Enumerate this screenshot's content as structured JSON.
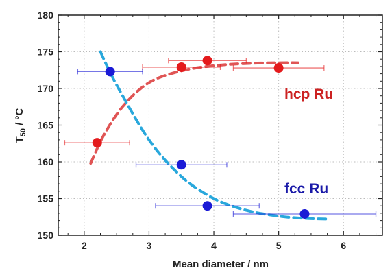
{
  "chart_data": {
    "type": "scatter",
    "xlabel": "Mean diameter / nm",
    "ylabel_main": "T",
    "ylabel_sub": "50",
    "ylabel_rest": " / °C",
    "xlim": [
      1.6,
      6.6
    ],
    "ylim": [
      150,
      180
    ],
    "xticks": [
      2,
      3,
      4,
      5,
      6
    ],
    "yticks": [
      150,
      155,
      160,
      165,
      170,
      175,
      180
    ],
    "xtick_labels": [
      "2",
      "3",
      "4",
      "5",
      "6"
    ],
    "ytick_labels": [
      "150",
      "155",
      "160",
      "165",
      "170",
      "175",
      "180"
    ],
    "grid": true,
    "series": [
      {
        "name": "hcp Ru",
        "color": "#e41a1c",
        "curve_color": "#e05555",
        "points": [
          {
            "x": 2.2,
            "y": 162.6,
            "xerr_low": 1.7,
            "xerr_high": 2.7
          },
          {
            "x": 3.5,
            "y": 172.9,
            "xerr_low": 2.9,
            "xerr_high": 4.1
          },
          {
            "x": 3.9,
            "y": 173.8,
            "xerr_low": 3.3,
            "xerr_high": 4.5
          },
          {
            "x": 5.0,
            "y": 172.8,
            "xerr_low": 4.3,
            "xerr_high": 5.7
          }
        ],
        "fit": [
          [
            2.1,
            159.8
          ],
          [
            2.3,
            163.6
          ],
          [
            2.6,
            167.6
          ],
          [
            3.0,
            170.8
          ],
          [
            3.5,
            172.4
          ],
          [
            4.0,
            173.1
          ],
          [
            4.5,
            173.4
          ],
          [
            5.0,
            173.5
          ],
          [
            5.3,
            173.5
          ]
        ]
      },
      {
        "name": "fcc Ru",
        "color": "#1a1ad6",
        "curve_color": "#29a8dc",
        "points": [
          {
            "x": 2.4,
            "y": 172.3,
            "xerr_low": 1.9,
            "xerr_high": 2.9
          },
          {
            "x": 3.5,
            "y": 159.6,
            "xerr_low": 2.8,
            "xerr_high": 4.2
          },
          {
            "x": 3.9,
            "y": 154.0,
            "xerr_low": 3.1,
            "xerr_high": 4.7
          },
          {
            "x": 5.4,
            "y": 152.9,
            "xerr_low": 4.3,
            "xerr_high": 6.5
          }
        ],
        "fit": [
          [
            2.25,
            175.0
          ],
          [
            2.5,
            170.5
          ],
          [
            3.0,
            163.0
          ],
          [
            3.5,
            158.0
          ],
          [
            4.0,
            155.0
          ],
          [
            4.5,
            153.4
          ],
          [
            5.0,
            152.6
          ],
          [
            5.4,
            152.3
          ],
          [
            5.75,
            152.2
          ]
        ]
      }
    ]
  }
}
